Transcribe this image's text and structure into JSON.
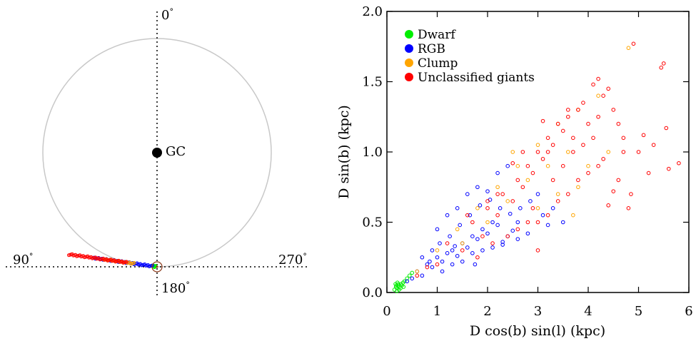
{
  "left_panel": {
    "labels": {
      "top": "0",
      "bottom": "180",
      "left": "90",
      "right": "270",
      "center": "GC",
      "degree_sign": "°"
    },
    "colors": {
      "circle": "#c8c8c8",
      "axes": "#000000",
      "sun_marker": "#8b3a1a"
    },
    "chart_data": {
      "type": "scatter",
      "description_free": true,
      "series": [
        {
          "name": "Dwarf",
          "color": "#00ee00",
          "r_kpc": [
            0.1,
            0.25
          ]
        },
        {
          "name": "RGB",
          "color": "#0000ff",
          "r_kpc": [
            0.3,
            4.2
          ]
        },
        {
          "name": "Clump",
          "color": "#ffa500",
          "r_kpc": [
            1.5,
            3.5
          ]
        },
        {
          "name": "Unclassified giants",
          "color": "#ff0000",
          "r_kpc": [
            2.0,
            5.8
          ]
        }
      ]
    }
  },
  "chart_data": {
    "type": "scatter",
    "xlabel": "D cos(b) sin(l) (kpc)",
    "ylabel": "D sin(b) (kpc)",
    "xlim": [
      0,
      6
    ],
    "ylim": [
      0,
      2.0
    ],
    "xticks": [
      "0",
      "1",
      "2",
      "3",
      "4",
      "5",
      "6"
    ],
    "yticks": [
      "0.0",
      "0.5",
      "1.0",
      "1.5",
      "2.0"
    ],
    "legend_position": "top-left",
    "series": [
      {
        "name": "Dwarf",
        "color": "#00ee00",
        "points": [
          [
            0.15,
            0.02
          ],
          [
            0.18,
            0.04
          ],
          [
            0.2,
            0.03
          ],
          [
            0.22,
            0.05
          ],
          [
            0.25,
            0.04
          ],
          [
            0.17,
            0.06
          ],
          [
            0.28,
            0.06
          ],
          [
            0.3,
            0.05
          ],
          [
            0.2,
            0.01
          ],
          [
            0.24,
            0.02
          ],
          [
            0.32,
            0.07
          ],
          [
            0.35,
            0.08
          ],
          [
            0.27,
            0.03
          ],
          [
            0.19,
            0.05
          ],
          [
            0.21,
            0.07
          ],
          [
            0.33,
            0.04
          ],
          [
            0.4,
            0.1
          ],
          [
            0.45,
            0.12
          ],
          [
            0.5,
            0.14
          ],
          [
            0.23,
            0.06
          ]
        ]
      },
      {
        "name": "RGB",
        "color": "#0000ff",
        "points": [
          [
            0.4,
            0.08
          ],
          [
            0.5,
            0.1
          ],
          [
            0.6,
            0.15
          ],
          [
            0.7,
            0.12
          ],
          [
            0.8,
            0.2
          ],
          [
            0.9,
            0.18
          ],
          [
            1.0,
            0.25
          ],
          [
            1.1,
            0.22
          ],
          [
            1.2,
            0.28
          ],
          [
            1.3,
            0.3
          ],
          [
            1.4,
            0.26
          ],
          [
            1.5,
            0.35
          ],
          [
            1.6,
            0.32
          ],
          [
            1.7,
            0.4
          ],
          [
            1.8,
            0.38
          ],
          [
            1.9,
            0.45
          ],
          [
            2.0,
            0.42
          ],
          [
            2.1,
            0.5
          ],
          [
            2.2,
            0.48
          ],
          [
            2.3,
            0.36
          ],
          [
            2.4,
            0.4
          ],
          [
            2.5,
            0.44
          ],
          [
            2.6,
            0.5
          ],
          [
            1.0,
            0.45
          ],
          [
            1.2,
            0.55
          ],
          [
            1.4,
            0.6
          ],
          [
            1.6,
            0.7
          ],
          [
            1.8,
            0.75
          ],
          [
            2.0,
            0.72
          ],
          [
            2.2,
            0.85
          ],
          [
            2.4,
            0.9
          ],
          [
            1.1,
            0.15
          ],
          [
            1.3,
            0.2
          ],
          [
            1.5,
            0.22
          ],
          [
            1.7,
            0.28
          ],
          [
            1.9,
            0.3
          ],
          [
            2.1,
            0.32
          ],
          [
            2.3,
            0.34
          ],
          [
            0.9,
            0.3
          ],
          [
            1.05,
            0.35
          ],
          [
            1.25,
            0.4
          ],
          [
            1.45,
            0.48
          ],
          [
            1.65,
            0.55
          ],
          [
            1.85,
            0.62
          ],
          [
            2.05,
            0.66
          ],
          [
            2.25,
            0.6
          ],
          [
            2.45,
            0.56
          ],
          [
            2.65,
            0.6
          ],
          [
            2.85,
            0.65
          ],
          [
            3.0,
            0.7
          ],
          [
            0.7,
            0.25
          ],
          [
            0.85,
            0.22
          ],
          [
            1.35,
            0.33
          ],
          [
            1.75,
            0.2
          ],
          [
            2.6,
            0.38
          ],
          [
            2.8,
            0.42
          ],
          [
            3.1,
            0.55
          ],
          [
            3.3,
            0.6
          ],
          [
            3.5,
            0.5
          ],
          [
            3.2,
            0.48
          ]
        ]
      },
      {
        "name": "Clump",
        "color": "#ffa500",
        "points": [
          [
            0.6,
            0.15
          ],
          [
            1.0,
            0.3
          ],
          [
            1.4,
            0.45
          ],
          [
            1.8,
            0.6
          ],
          [
            2.2,
            0.75
          ],
          [
            2.6,
            0.9
          ],
          [
            3.0,
            1.05
          ],
          [
            3.4,
            1.2
          ],
          [
            3.8,
            1.3
          ],
          [
            4.2,
            1.4
          ],
          [
            2.0,
            0.5
          ],
          [
            2.4,
            0.65
          ],
          [
            2.8,
            0.8
          ],
          [
            3.2,
            0.9
          ],
          [
            3.6,
            1.0
          ],
          [
            4.0,
            0.9
          ],
          [
            4.4,
            1.0
          ],
          [
            3.0,
            0.6
          ],
          [
            3.4,
            0.7
          ],
          [
            3.8,
            0.75
          ],
          [
            2.5,
            1.0
          ],
          [
            4.8,
            1.74
          ],
          [
            1.5,
            0.35
          ],
          [
            3.7,
            0.55
          ]
        ]
      },
      {
        "name": "Unclassified giants",
        "color": "#ff0000",
        "points": [
          [
            1.5,
            0.3
          ],
          [
            1.7,
            0.5
          ],
          [
            1.9,
            0.4
          ],
          [
            2.0,
            0.6
          ],
          [
            2.2,
            0.55
          ],
          [
            2.3,
            0.7
          ],
          [
            2.5,
            0.65
          ],
          [
            2.6,
            0.8
          ],
          [
            2.7,
            0.75
          ],
          [
            2.8,
            0.9
          ],
          [
            2.9,
            0.85
          ],
          [
            3.0,
            1.0
          ],
          [
            3.1,
            0.95
          ],
          [
            3.2,
            1.1
          ],
          [
            3.3,
            1.05
          ],
          [
            3.4,
            1.2
          ],
          [
            3.5,
            1.15
          ],
          [
            3.6,
            1.25
          ],
          [
            3.7,
            1.1
          ],
          [
            3.8,
            1.3
          ],
          [
            3.9,
            1.35
          ],
          [
            4.0,
            1.2
          ],
          [
            4.1,
            1.48
          ],
          [
            4.2,
            1.52
          ],
          [
            4.3,
            1.4
          ],
          [
            4.4,
            1.45
          ],
          [
            4.5,
            1.3
          ],
          [
            4.6,
            1.2
          ],
          [
            4.7,
            1.1
          ],
          [
            4.9,
            1.77
          ],
          [
            5.1,
            1.12
          ],
          [
            5.3,
            1.05
          ],
          [
            5.45,
            1.6
          ],
          [
            5.5,
            1.63
          ],
          [
            5.55,
            1.17
          ],
          [
            5.6,
            0.88
          ],
          [
            5.8,
            0.92
          ],
          [
            4.85,
            0.7
          ],
          [
            5.2,
            0.85
          ],
          [
            4.5,
            0.72
          ],
          [
            3.0,
            0.5
          ],
          [
            3.2,
            0.55
          ],
          [
            3.4,
            0.65
          ],
          [
            3.6,
            0.7
          ],
          [
            3.8,
            0.8
          ],
          [
            4.0,
            0.85
          ],
          [
            4.2,
            0.9
          ],
          [
            2.4,
            0.4
          ],
          [
            2.6,
            0.45
          ],
          [
            2.8,
            0.5
          ],
          [
            3.0,
            0.3
          ],
          [
            1.8,
            0.25
          ],
          [
            2.1,
            0.35
          ],
          [
            2.5,
            0.92
          ],
          [
            2.7,
            1.0
          ],
          [
            3.1,
            1.22
          ],
          [
            3.3,
            0.8
          ],
          [
            3.5,
            0.9
          ],
          [
            3.7,
            1.0
          ],
          [
            3.9,
            1.05
          ],
          [
            4.1,
            1.1
          ],
          [
            4.3,
            0.95
          ],
          [
            4.4,
            0.62
          ],
          [
            4.6,
            0.8
          ],
          [
            4.7,
            1.0
          ],
          [
            2.2,
            0.7
          ],
          [
            2.0,
            0.65
          ],
          [
            1.6,
            0.55
          ],
          [
            1.2,
            0.35
          ],
          [
            1.0,
            0.2
          ],
          [
            0.8,
            0.18
          ],
          [
            0.6,
            0.12
          ],
          [
            5.0,
            1.0
          ],
          [
            4.8,
            0.6
          ],
          [
            4.2,
            1.25
          ],
          [
            3.6,
            1.3
          ],
          [
            3.2,
            1.0
          ],
          [
            2.9,
            0.6
          ]
        ]
      }
    ]
  }
}
